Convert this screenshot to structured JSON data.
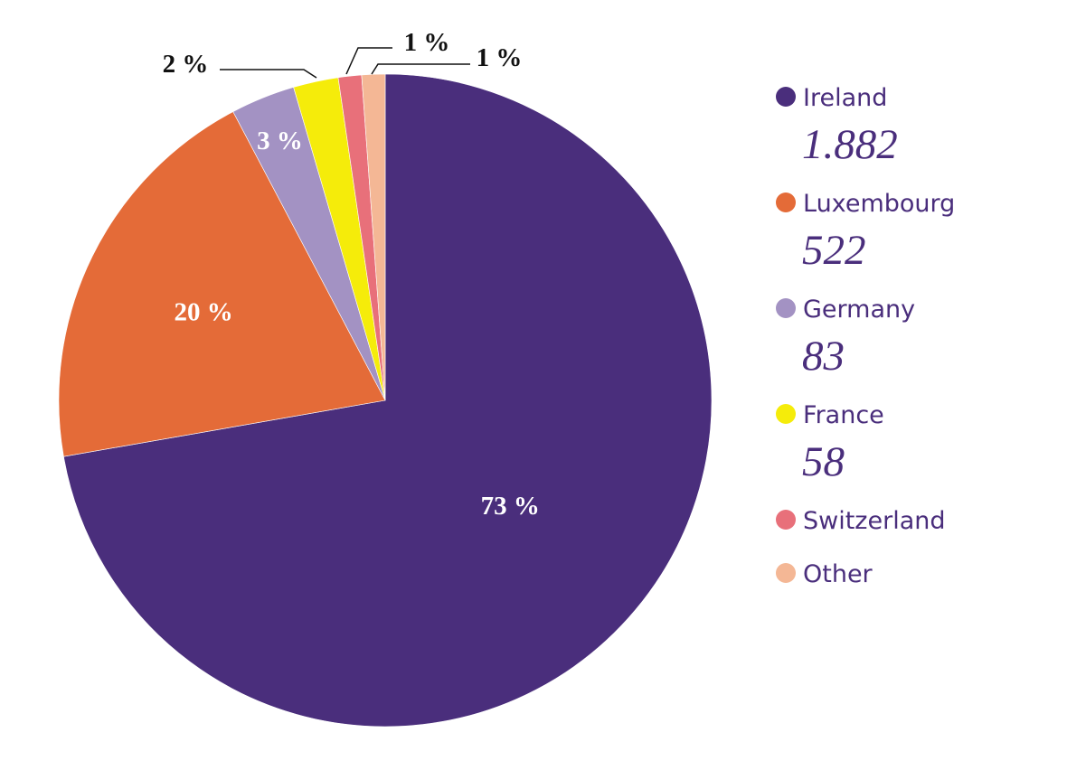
{
  "chart_data": {
    "type": "pie",
    "start": "top",
    "direction": "clockwise",
    "slices": [
      {
        "name": "Ireland",
        "value": 1882,
        "value_label": "1.882",
        "percent_label": "73 %",
        "color": "#4a2e7c",
        "label_color": "#ffffff"
      },
      {
        "name": "Luxembourg",
        "value": 522,
        "value_label": "522",
        "percent_label": "20 %",
        "color": "#e46b38",
        "label_color": "#ffffff"
      },
      {
        "name": "Germany",
        "value": 83,
        "value_label": "83",
        "percent_label": "3 %",
        "color": "#a392c3",
        "label_color": "#ffffff"
      },
      {
        "name": "France",
        "value": 58,
        "value_label": "58",
        "percent_label": "2 %",
        "color": "#f5ec0a",
        "label_color": "#111111"
      },
      {
        "name": "Switzerland",
        "value": 30,
        "value_label": "",
        "percent_label": "1 %",
        "color": "#e8707a",
        "label_color": "#111111"
      },
      {
        "name": "Other",
        "value": 30,
        "value_label": "",
        "percent_label": "1 %",
        "color": "#f4b795",
        "label_color": "#111111"
      }
    ],
    "legend": {
      "position": "right",
      "text_color": "#4a2e7c"
    }
  }
}
